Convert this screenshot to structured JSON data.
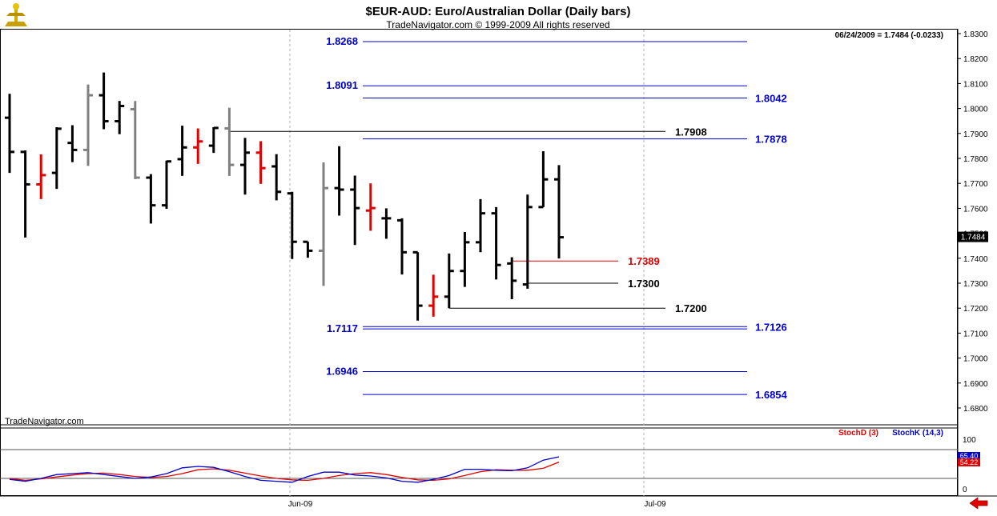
{
  "header": {
    "title": "$EUR-AUD:  Euro/Australian Dollar  (Daily bars)",
    "subtitle": "TradeNavigator.com © 1999-2009 All rights reserved",
    "info": "06/24/2009 = 1.7484 (-0.0233)",
    "watermark": "TradeNavigator.com"
  },
  "colors": {
    "up_down_bar": "#000000",
    "inside_bar": "#808080",
    "reversal_bar": "#e00000",
    "fib_level": "#0000cc",
    "support_line": "#000000",
    "key_level": "#e00000",
    "stoch_d": "#e00000",
    "stoch_k": "#0000cc"
  },
  "chart_data": [
    {
      "type": "ohlc",
      "title": "$EUR-AUD:  Euro/Australian Dollar  (Daily bars)",
      "ylim": [
        1.6745,
        1.834
      ],
      "y_ticks": [
        "1.8300",
        "1.8200",
        "1.8100",
        "1.8000",
        "1.7900",
        "1.7800",
        "1.7700",
        "1.7600",
        "1.7500",
        "1.7400",
        "1.7300",
        "1.7200",
        "1.7100",
        "1.7000",
        "1.6900",
        "1.6800"
      ],
      "x_ticks": [
        "Jun-09",
        "Jul-09"
      ],
      "last_price": "1.7484",
      "bars": [
        {
          "o": 1.7963,
          "h": 1.8059,
          "l": 1.7742,
          "c": 1.7826,
          "kind": "normal"
        },
        {
          "o": 1.7826,
          "h": 1.7832,
          "l": 1.7483,
          "c": 1.7696,
          "kind": "normal"
        },
        {
          "o": 1.7696,
          "h": 1.7816,
          "l": 1.7637,
          "c": 1.7733,
          "kind": "reversal"
        },
        {
          "o": 1.7742,
          "h": 1.7925,
          "l": 1.7678,
          "c": 1.7919,
          "kind": "normal"
        },
        {
          "o": 1.7862,
          "h": 1.7933,
          "l": 1.7785,
          "c": 1.7834,
          "kind": "normal"
        },
        {
          "o": 1.7834,
          "h": 1.8096,
          "l": 1.777,
          "c": 1.8053,
          "kind": "inside"
        },
        {
          "o": 1.8053,
          "h": 1.8144,
          "l": 1.7917,
          "c": 1.7949,
          "kind": "normal"
        },
        {
          "o": 1.7949,
          "h": 1.803,
          "l": 1.7897,
          "c": 1.801,
          "kind": "normal"
        },
        {
          "o": 1.7997,
          "h": 1.803,
          "l": 1.7717,
          "c": 1.7723,
          "kind": "inside"
        },
        {
          "o": 1.7723,
          "h": 1.7737,
          "l": 1.7539,
          "c": 1.7612,
          "kind": "normal"
        },
        {
          "o": 1.7612,
          "h": 1.7791,
          "l": 1.7598,
          "c": 1.7788,
          "kind": "normal"
        },
        {
          "o": 1.7797,
          "h": 1.7931,
          "l": 1.773,
          "c": 1.7844,
          "kind": "normal"
        },
        {
          "o": 1.7844,
          "h": 1.792,
          "l": 1.7778,
          "c": 1.7868,
          "kind": "reversal"
        },
        {
          "o": 1.7851,
          "h": 1.7925,
          "l": 1.7822,
          "c": 1.7922,
          "kind": "normal"
        },
        {
          "o": 1.792,
          "h": 1.8003,
          "l": 1.773,
          "c": 1.7774,
          "kind": "inside"
        },
        {
          "o": 1.7774,
          "h": 1.7882,
          "l": 1.7655,
          "c": 1.7823,
          "kind": "normal"
        },
        {
          "o": 1.7823,
          "h": 1.7869,
          "l": 1.7698,
          "c": 1.7761,
          "kind": "reversal"
        },
        {
          "o": 1.7768,
          "h": 1.7817,
          "l": 1.7632,
          "c": 1.7666,
          "kind": "normal"
        },
        {
          "o": 1.766,
          "h": 1.7666,
          "l": 1.7397,
          "c": 1.7466,
          "kind": "normal"
        },
        {
          "o": 1.7466,
          "h": 1.7466,
          "l": 1.7402,
          "c": 1.743,
          "kind": "normal"
        },
        {
          "o": 1.743,
          "h": 1.7784,
          "l": 1.7289,
          "c": 1.7681,
          "kind": "inside"
        },
        {
          "o": 1.7681,
          "h": 1.7849,
          "l": 1.7571,
          "c": 1.7675,
          "kind": "normal"
        },
        {
          "o": 1.7675,
          "h": 1.7731,
          "l": 1.7453,
          "c": 1.7601,
          "kind": "normal"
        },
        {
          "o": 1.7591,
          "h": 1.77,
          "l": 1.751,
          "c": 1.7601,
          "kind": "reversal"
        },
        {
          "o": 1.756,
          "h": 1.76,
          "l": 1.7478,
          "c": 1.756,
          "kind": "normal"
        },
        {
          "o": 1.7552,
          "h": 1.756,
          "l": 1.7335,
          "c": 1.7424,
          "kind": "normal"
        },
        {
          "o": 1.7424,
          "h": 1.7424,
          "l": 1.715,
          "c": 1.721,
          "kind": "normal"
        },
        {
          "o": 1.721,
          "h": 1.7334,
          "l": 1.7166,
          "c": 1.7246,
          "kind": "reversal"
        },
        {
          "o": 1.7246,
          "h": 1.7419,
          "l": 1.72,
          "c": 1.7349,
          "kind": "normal"
        },
        {
          "o": 1.7349,
          "h": 1.7505,
          "l": 1.7285,
          "c": 1.7464,
          "kind": "normal"
        },
        {
          "o": 1.7464,
          "h": 1.7637,
          "l": 1.7424,
          "c": 1.758,
          "kind": "normal"
        },
        {
          "o": 1.758,
          "h": 1.7605,
          "l": 1.7315,
          "c": 1.7373,
          "kind": "normal"
        },
        {
          "o": 1.7379,
          "h": 1.7404,
          "l": 1.7236,
          "c": 1.731,
          "kind": "normal"
        },
        {
          "o": 1.7295,
          "h": 1.7655,
          "l": 1.7278,
          "c": 1.7605,
          "kind": "normal"
        },
        {
          "o": 1.7605,
          "h": 1.7829,
          "l": 1.7605,
          "c": 1.7716,
          "kind": "normal"
        },
        {
          "o": 1.7716,
          "h": 1.7773,
          "l": 1.7399,
          "c": 1.7484,
          "kind": "normal"
        }
      ],
      "fib_levels": [
        {
          "value": 1.8268,
          "label": "1.8268",
          "side": "left"
        },
        {
          "value": 1.8091,
          "label": "1.8091",
          "side": "left"
        },
        {
          "value": 1.8042,
          "label": "1.8042",
          "side": "right"
        },
        {
          "value": 1.7878,
          "label": "1.7878",
          "side": "right"
        },
        {
          "value": 1.7117,
          "label": "1.7117",
          "side": "left"
        },
        {
          "value": 1.7126,
          "label": "1.7126",
          "side": "right"
        },
        {
          "value": 1.6946,
          "label": "1.6946",
          "side": "left"
        },
        {
          "value": 1.6854,
          "label": "1.6854",
          "side": "right"
        }
      ],
      "support_lines": [
        {
          "value": 1.7908,
          "label": "1.7908",
          "start": "bar-14"
        },
        {
          "value": 1.73,
          "label": "1.7300",
          "start": "bar-33"
        },
        {
          "value": 1.72,
          "label": "1.7200",
          "start": "bar-28"
        }
      ],
      "key_level": {
        "value": 1.7389,
        "label": "1.7389",
        "start": "bar-32"
      }
    },
    {
      "type": "line",
      "ylim": [
        0,
        100
      ],
      "y_ticks": [
        "100",
        "0"
      ],
      "reference_levels": [
        80,
        20
      ],
      "series": [
        {
          "name": "StochD (3)",
          "last_label": "54.22",
          "values": [
            20,
            16,
            19,
            23,
            27,
            30,
            31,
            28,
            24,
            22,
            24,
            30,
            38,
            40,
            37,
            31,
            25,
            20,
            17,
            16,
            20,
            26,
            30,
            32,
            28,
            22,
            17,
            16,
            19,
            26,
            34,
            38,
            37,
            37,
            41,
            54
          ]
        },
        {
          "name": "StochK (14,3)",
          "last_label": "65.40",
          "values": [
            18,
            14,
            20,
            28,
            30,
            32,
            28,
            24,
            20,
            23,
            30,
            42,
            45,
            43,
            34,
            24,
            16,
            14,
            12,
            24,
            33,
            33,
            27,
            25,
            21,
            14,
            12,
            18,
            26,
            39,
            39,
            37,
            36,
            42,
            58,
            65
          ]
        }
      ]
    }
  ]
}
